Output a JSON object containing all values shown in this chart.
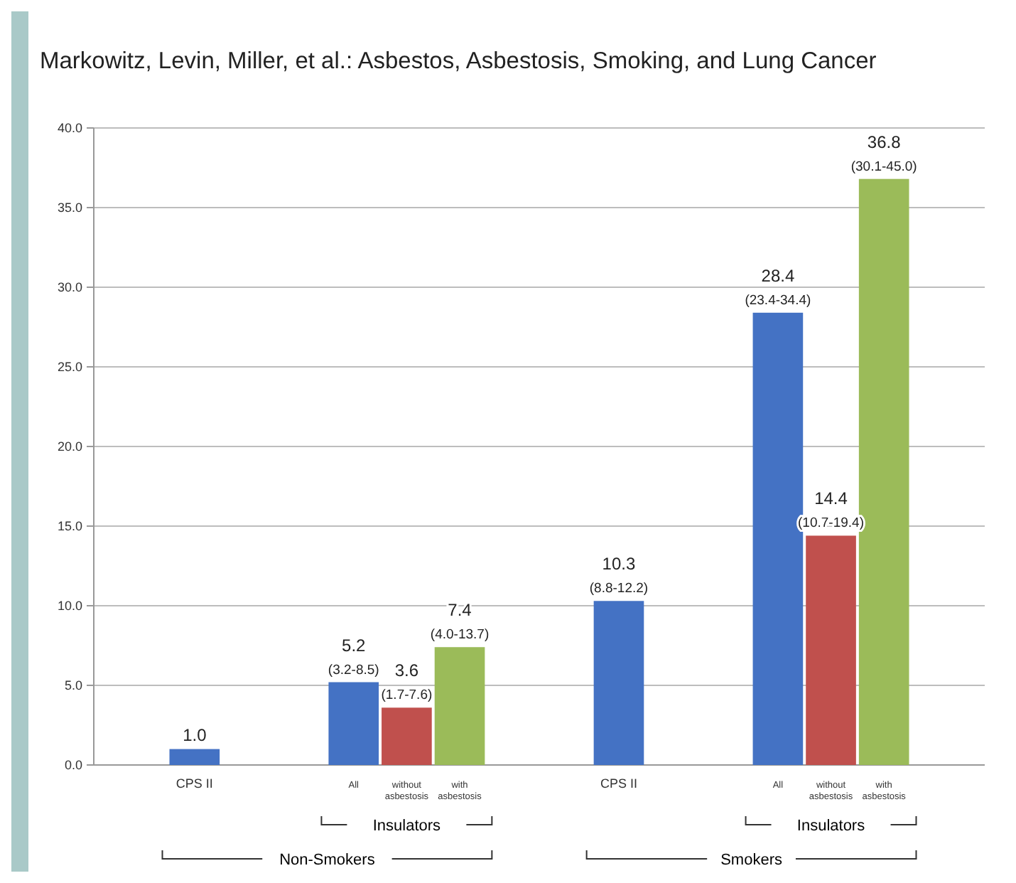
{
  "chart_data": {
    "type": "bar",
    "title": "Markowitz, Levin, Miller, et al.: Asbestos, Asbestosis, Smoking, and Lung Cancer",
    "categories": [
      "CPS II",
      null,
      null,
      "All",
      "without asbestosis",
      "with asbestosis",
      null,
      null,
      "CPS II",
      null,
      null,
      "All",
      "without asbestosis",
      "with asbestosis"
    ],
    "values": [
      1.0,
      null,
      null,
      5.2,
      3.6,
      7.4,
      null,
      null,
      10.3,
      null,
      null,
      28.4,
      14.4,
      36.8
    ],
    "colors": [
      "#4472c4",
      null,
      null,
      "#4472c4",
      "#c0504d",
      "#9bbb59",
      null,
      null,
      "#4472c4",
      null,
      null,
      "#4472c4",
      "#c0504d",
      "#9bbb59"
    ],
    "value_labels": [
      "1.0",
      null,
      null,
      "5.2\n(3.2-8.5)",
      "3.6\n(1.7-7.6)",
      "7.4\n(4.0-13.7)",
      null,
      null,
      "10.3\n(8.8-12.2)",
      null,
      null,
      "28.4\n(23.4-34.4)",
      "14.4\n(10.7-19.4)",
      "36.8\n(30.1-45.0)"
    ],
    "annotations": [
      "Insulators",
      "Insulators",
      "Non-Smokers",
      "Smokers"
    ],
    "ylim": [
      0,
      40
    ],
    "yticks": [
      {
        "value": 0,
        "label": "0.0"
      },
      {
        "value": 5,
        "label": "5.0"
      },
      {
        "value": 10,
        "label": "10.0"
      },
      {
        "value": 15,
        "label": "15.0"
      },
      {
        "value": 20,
        "label": "20.0"
      },
      {
        "value": 25,
        "label": "25.0"
      },
      {
        "value": 30,
        "label": "30.0"
      },
      {
        "value": 35,
        "label": "35.0"
      },
      {
        "value": 40,
        "label": "40.0"
      }
    ],
    "grid": "y"
  }
}
